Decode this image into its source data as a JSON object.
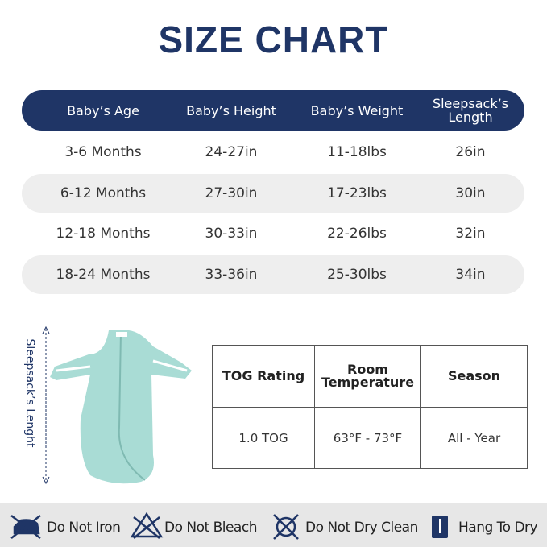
{
  "title": "SIZE CHART",
  "size_table": {
    "headers": [
      "Baby’s Age",
      "Baby’s Height",
      "Baby’s Weight",
      "Sleepsack’s Length"
    ],
    "rows": [
      [
        "3-6 Months",
        "24-27in",
        "11-18lbs",
        "26in"
      ],
      [
        "6-12 Months",
        "27-30in",
        "17-23lbs",
        "30in"
      ],
      [
        "12-18 Months",
        "30-33in",
        "22-26lbs",
        "32in"
      ],
      [
        "18-24 Months",
        "33-36in",
        "25-30lbs",
        "34in"
      ]
    ]
  },
  "illustration_label": "Sleepsack’s Lenght",
  "tog_table": {
    "headers": [
      "TOG Rating",
      "Room Temperature",
      "Season"
    ],
    "rows": [
      [
        "1.0 TOG",
        "63°F - 73°F",
        "All - Year"
      ]
    ]
  },
  "care": [
    "Do Not Iron",
    "Do Not Bleach",
    "Do Not Dry Clean",
    "Hang To Dry"
  ]
}
